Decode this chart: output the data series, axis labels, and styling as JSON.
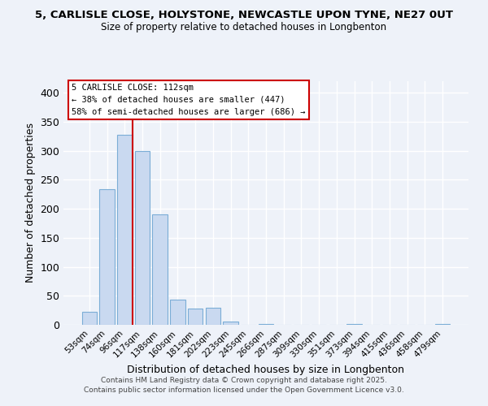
{
  "title_line1": "5, CARLISLE CLOSE, HOLYSTONE, NEWCASTLE UPON TYNE, NE27 0UT",
  "title_line2": "Size of property relative to detached houses in Longbenton",
  "xlabel": "Distribution of detached houses by size in Longbenton",
  "ylabel": "Number of detached properties",
  "bar_labels": [
    "53sqm",
    "74sqm",
    "96sqm",
    "117sqm",
    "138sqm",
    "160sqm",
    "181sqm",
    "202sqm",
    "223sqm",
    "245sqm",
    "266sqm",
    "287sqm",
    "309sqm",
    "330sqm",
    "351sqm",
    "373sqm",
    "394sqm",
    "415sqm",
    "436sqm",
    "458sqm",
    "479sqm"
  ],
  "bar_values": [
    22,
    234,
    327,
    299,
    191,
    44,
    28,
    30,
    5,
    0,
    2,
    0,
    0,
    0,
    0,
    1,
    0,
    0,
    0,
    0,
    1
  ],
  "bar_color": "#c9d9f0",
  "bar_edge_color": "#7badd6",
  "vline_color": "#cc0000",
  "ylim": [
    0,
    420
  ],
  "yticks": [
    0,
    50,
    100,
    150,
    200,
    250,
    300,
    350,
    400
  ],
  "annotation_title": "5 CARLISLE CLOSE: 112sqm",
  "annotation_line2": "← 38% of detached houses are smaller (447)",
  "annotation_line3": "58% of semi-detached houses are larger (686) →",
  "annotation_box_color": "#ffffff",
  "annotation_box_edge": "#cc0000",
  "footer_line1": "Contains HM Land Registry data © Crown copyright and database right 2025.",
  "footer_line2": "Contains public sector information licensed under the Open Government Licence v3.0.",
  "background_color": "#eef2f9",
  "grid_color": "#ffffff"
}
